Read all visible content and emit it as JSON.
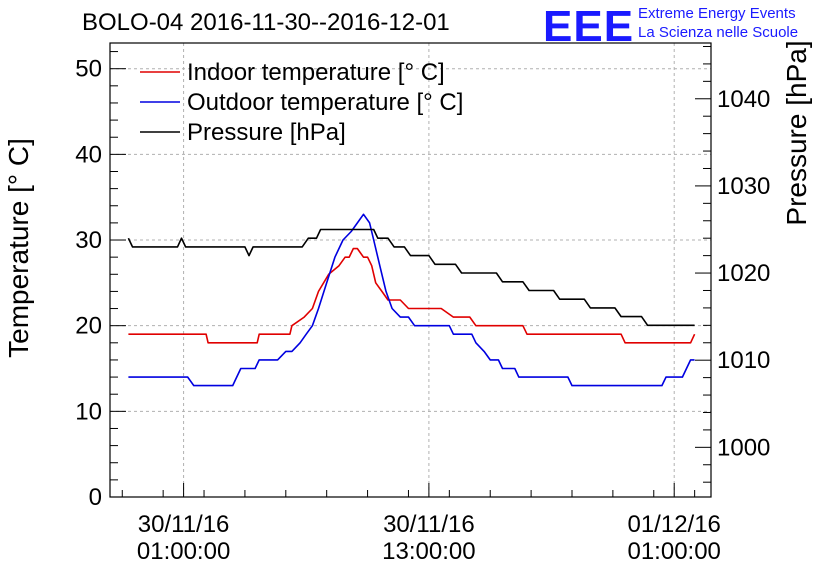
{
  "header": {
    "title": "BOLO-04 2016-11-30--2016-12-01",
    "logo_mark": "EEE",
    "logo_line1": "Extreme Energy Events",
    "logo_line2": "La Scienza nelle Scuole"
  },
  "colors": {
    "indoor": "#e00000",
    "outdoor": "#0000e0",
    "pressure": "#000000",
    "logo": "#1a1aff"
  },
  "chart_data": {
    "type": "line",
    "x_unit": "hours since 30/11/16 00:00",
    "xlim": [
      -2.6,
      26.8
    ],
    "ylim": [
      0,
      53
    ],
    "y2lim": [
      994.3,
      1046.4
    ],
    "ylabel": "Temperature [° C]",
    "y2label": "Pressure [hPa]",
    "yticks": [
      0,
      10,
      20,
      30,
      40,
      50
    ],
    "y2ticks": [
      1000,
      1010,
      1020,
      1030,
      1040
    ],
    "xticks": [
      {
        "x": 1,
        "line1": "30/11/16",
        "line2": "01:00:00"
      },
      {
        "x": 13,
        "line1": "30/11/16",
        "line2": "13:00:00"
      },
      {
        "x": 25,
        "line1": "01/12/16",
        "line2": "01:00:00"
      }
    ],
    "grid": true,
    "legend_position": "top-left",
    "series": [
      {
        "name": "Indoor temperature [° C]",
        "axis": "left",
        "points": [
          [
            -1.7,
            19
          ],
          [
            0.5,
            19
          ],
          [
            2.1,
            19
          ],
          [
            2.2,
            18
          ],
          [
            3.2,
            18
          ],
          [
            4.6,
            18
          ],
          [
            4.7,
            19
          ],
          [
            6.2,
            19
          ],
          [
            6.3,
            20
          ],
          [
            6.9,
            21
          ],
          [
            7.3,
            22
          ],
          [
            7.6,
            24
          ],
          [
            8.1,
            26
          ],
          [
            8.6,
            27
          ],
          [
            8.9,
            28
          ],
          [
            9.1,
            28
          ],
          [
            9.3,
            29
          ],
          [
            9.5,
            29
          ],
          [
            9.8,
            28
          ],
          [
            10.0,
            28
          ],
          [
            10.2,
            27
          ],
          [
            10.4,
            25
          ],
          [
            10.7,
            24
          ],
          [
            11.0,
            23
          ],
          [
            11.6,
            23
          ],
          [
            12.0,
            22
          ],
          [
            13.6,
            22
          ],
          [
            14.2,
            21
          ],
          [
            15.0,
            21
          ],
          [
            15.3,
            20
          ],
          [
            17.6,
            20
          ],
          [
            17.8,
            19
          ],
          [
            21.0,
            19
          ],
          [
            22.4,
            19
          ],
          [
            22.6,
            18
          ],
          [
            25.8,
            18
          ],
          [
            26.0,
            19
          ]
        ]
      },
      {
        "name": "Outdoor temperature [° C]",
        "axis": "left",
        "points": [
          [
            -1.7,
            14
          ],
          [
            1.2,
            14
          ],
          [
            1.5,
            13
          ],
          [
            3.4,
            13
          ],
          [
            3.6,
            14
          ],
          [
            3.8,
            15
          ],
          [
            4.5,
            15
          ],
          [
            4.7,
            16
          ],
          [
            5.6,
            16
          ],
          [
            6.0,
            17
          ],
          [
            6.3,
            17
          ],
          [
            6.7,
            18
          ],
          [
            7.0,
            19
          ],
          [
            7.3,
            20
          ],
          [
            7.6,
            22
          ],
          [
            8.0,
            25
          ],
          [
            8.4,
            28
          ],
          [
            8.8,
            30
          ],
          [
            9.2,
            31
          ],
          [
            9.5,
            32
          ],
          [
            9.8,
            33
          ],
          [
            10.1,
            32
          ],
          [
            10.3,
            30
          ],
          [
            10.6,
            27
          ],
          [
            10.9,
            24
          ],
          [
            11.2,
            22
          ],
          [
            11.6,
            21
          ],
          [
            12.0,
            21
          ],
          [
            12.3,
            20
          ],
          [
            14.0,
            20
          ],
          [
            14.2,
            19
          ],
          [
            15.1,
            19
          ],
          [
            15.3,
            18
          ],
          [
            15.7,
            17
          ],
          [
            16.0,
            16
          ],
          [
            16.4,
            16
          ],
          [
            16.6,
            15
          ],
          [
            17.2,
            15
          ],
          [
            17.4,
            14
          ],
          [
            19.8,
            14
          ],
          [
            20.0,
            13
          ],
          [
            22.1,
            13
          ],
          [
            24.4,
            13
          ],
          [
            24.6,
            14
          ],
          [
            25.4,
            14
          ],
          [
            25.6,
            15
          ],
          [
            25.8,
            16
          ],
          [
            26.0,
            16
          ]
        ]
      },
      {
        "name": "Pressure [hPa]",
        "axis": "right",
        "points": [
          [
            -1.7,
            1024
          ],
          [
            -1.5,
            1023
          ],
          [
            0.7,
            1023
          ],
          [
            0.9,
            1024
          ],
          [
            1.1,
            1023
          ],
          [
            4.0,
            1023
          ],
          [
            4.2,
            1022
          ],
          [
            4.4,
            1023
          ],
          [
            6.8,
            1023
          ],
          [
            7.1,
            1024
          ],
          [
            7.5,
            1024
          ],
          [
            7.7,
            1025
          ],
          [
            10.3,
            1025
          ],
          [
            10.5,
            1024
          ],
          [
            11.0,
            1024
          ],
          [
            11.3,
            1023
          ],
          [
            11.8,
            1023
          ],
          [
            12.1,
            1022
          ],
          [
            13.0,
            1022
          ],
          [
            13.3,
            1021
          ],
          [
            14.3,
            1021
          ],
          [
            14.6,
            1020
          ],
          [
            16.3,
            1020
          ],
          [
            16.6,
            1019
          ],
          [
            17.6,
            1019
          ],
          [
            17.9,
            1018
          ],
          [
            19.1,
            1018
          ],
          [
            19.4,
            1017
          ],
          [
            20.6,
            1017
          ],
          [
            20.9,
            1016
          ],
          [
            22.1,
            1016
          ],
          [
            22.4,
            1015
          ],
          [
            23.4,
            1015
          ],
          [
            23.7,
            1014
          ],
          [
            26.0,
            1014
          ]
        ]
      }
    ]
  }
}
